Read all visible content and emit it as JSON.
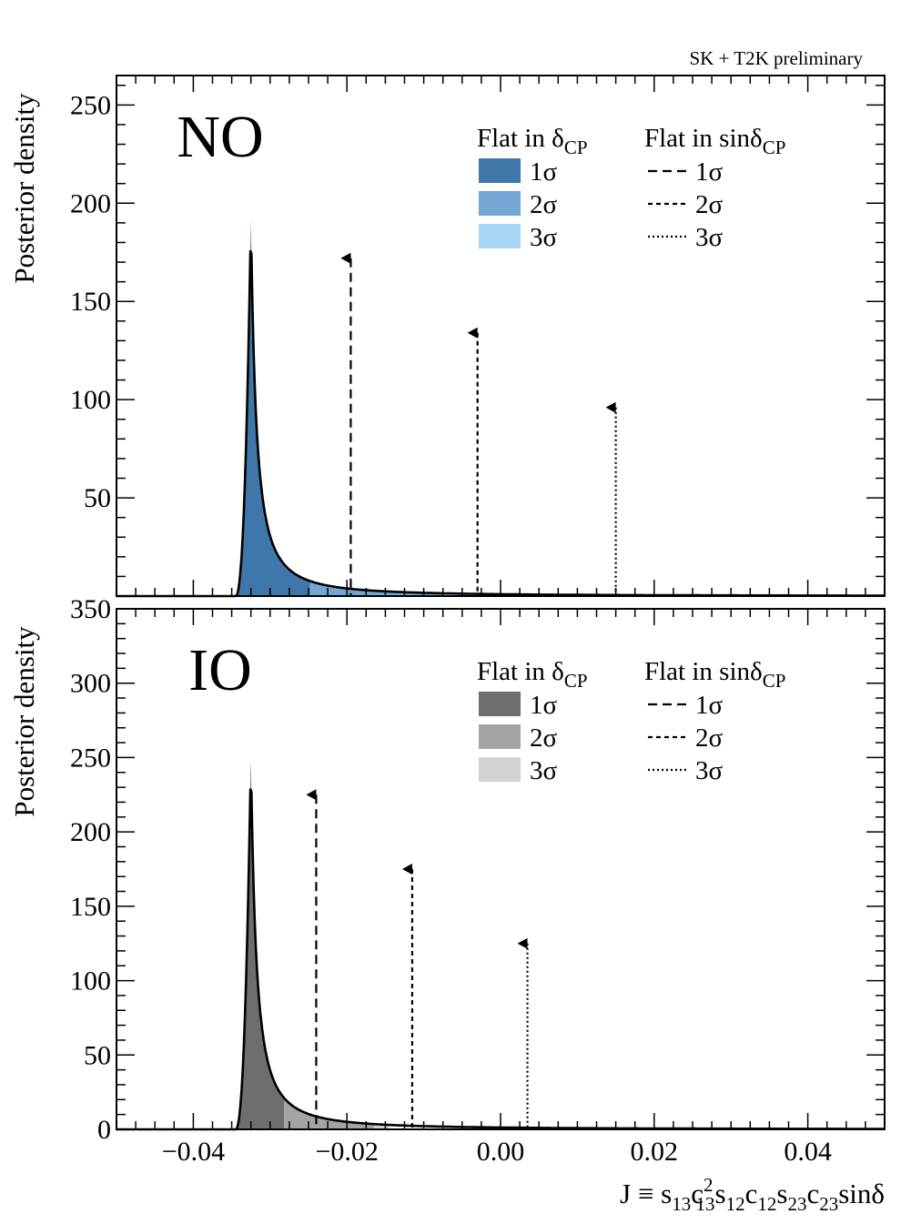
{
  "header": {
    "watermark": "SK + T2K preliminary"
  },
  "xaxis": {
    "label_parts": [
      "J ≡ s",
      "13",
      "c",
      "2",
      "13",
      "s",
      "12",
      "c",
      "12",
      "s",
      "23",
      "c",
      "23",
      "sinδ"
    ],
    "range": [
      -0.05,
      0.05
    ],
    "ticks": [
      -0.04,
      -0.02,
      0.0,
      0.02,
      0.04
    ],
    "tick_labels": [
      "−0.04",
      "−0.02",
      "0.00",
      "0.02",
      "0.04"
    ]
  },
  "legend": {
    "left_header": "Flat in δ",
    "left_header_sub": "CP",
    "right_header": "Flat in sinδ",
    "right_header_sub": "CP",
    "entries": [
      "1σ",
      "2σ",
      "3σ"
    ]
  },
  "chart_data": [
    {
      "type": "area",
      "panel": "NO",
      "title": "NO",
      "ylabel": "Posterior density",
      "ylim": [
        0,
        265
      ],
      "yticks": [
        50,
        100,
        150,
        200,
        250
      ],
      "ytick_labels": [
        "50",
        "100",
        "150",
        "200",
        "250"
      ],
      "peak_x": -0.0325,
      "peak_y": 192,
      "onset_x": -0.0345,
      "fill_colors": [
        "#3f77aa",
        "#73a6d4",
        "#aad6f6"
      ],
      "flat_delta_bounds": {
        "1σ": -0.0248,
        "2σ": -0.0078,
        "3σ": -0.0005
      },
      "flat_sin_markers": [
        {
          "name": "1σ",
          "x": -0.0195,
          "y": 172,
          "style": "dashed"
        },
        {
          "name": "2σ",
          "x": -0.003,
          "y": 134,
          "style": "dense-dashed"
        },
        {
          "name": "3σ",
          "x": 0.015,
          "y": 96,
          "style": "dotted"
        }
      ],
      "legend_colors": [
        "#3f77aa",
        "#73a6d4",
        "#aad6f6"
      ]
    },
    {
      "type": "area",
      "panel": "IO",
      "title": "IO",
      "ylabel": "Posterior density",
      "ylim": [
        0,
        350
      ],
      "yticks": [
        0,
        50,
        100,
        150,
        200,
        250,
        300,
        350
      ],
      "ytick_labels": [
        "0",
        "50",
        "100",
        "150",
        "200",
        "250",
        "300",
        "350"
      ],
      "peak_x": -0.0325,
      "peak_y": 250,
      "onset_x": -0.0345,
      "fill_colors": [
        "#6e6e6e",
        "#a4a4a4",
        "#d2d2d2"
      ],
      "flat_delta_bounds": {
        "1σ": -0.0282,
        "2σ": -0.0165,
        "3σ": -0.0145
      },
      "flat_sin_markers": [
        {
          "name": "1σ",
          "x": -0.024,
          "y": 225,
          "style": "dashed"
        },
        {
          "name": "2σ",
          "x": -0.0115,
          "y": 175,
          "style": "dense-dashed"
        },
        {
          "name": "3σ",
          "x": 0.0035,
          "y": 125,
          "style": "dotted"
        }
      ],
      "legend_colors": [
        "#6e6e6e",
        "#a4a4a4",
        "#d2d2d2"
      ]
    }
  ]
}
